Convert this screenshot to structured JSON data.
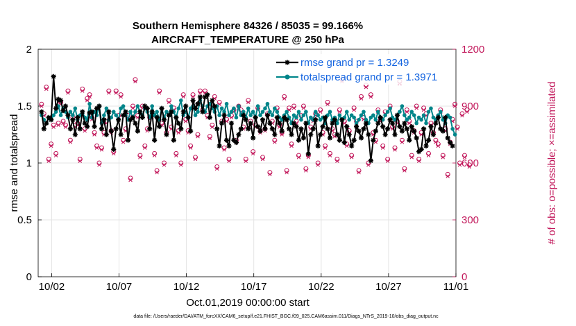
{
  "chart_data": {
    "type": "line",
    "title_line1": "Southern Hemisphere 84326 / 85035 = 99.166%",
    "title_line2": "AIRCRAFT_TEMPERATURE @ 250 hPa",
    "ylabel_left": "rmse and totalspread",
    "ylabel_right": "# of obs: o=possible; ×=assimilated",
    "xlabel": "Oct.01,2019 00:00:00 start",
    "footer": "data file: /Users/raeder/DAI/ATM_forcXX/CAM6_setup/f.e21.FHIST_BGC.f09_025.CAM6assim.011/Diags_NTrS_2019-10/obs_diag_output.nc",
    "ylim_left": [
      0,
      2
    ],
    "ylim_right": [
      0,
      1200
    ],
    "xlim_days": [
      0,
      31
    ],
    "left_ticks": [
      "0",
      "0.5",
      "1",
      "1.5",
      "2"
    ],
    "left_tick_values": [
      0,
      0.5,
      1,
      1.5,
      2
    ],
    "right_ticks": [
      "0",
      "300",
      "600",
      "900",
      "1200"
    ],
    "right_tick_values": [
      0,
      300,
      600,
      900,
      1200
    ],
    "x_ticks": [
      "10/02",
      "10/07",
      "10/12",
      "10/17",
      "10/22",
      "10/27",
      "11/01"
    ],
    "x_tick_days": [
      1,
      6,
      11,
      16,
      21,
      26,
      31
    ],
    "legend": [
      {
        "label": "rmse grand pr = 1.3249",
        "color": "#000000"
      },
      {
        "label": "totalspread grand pr = 1.3971",
        "color": "#00858a"
      }
    ],
    "colors": {
      "rmse": "#000000",
      "spread": "#00858a",
      "obs": "#c2185b"
    },
    "series": [
      {
        "name": "rmse",
        "values": [
          1.45,
          1.3,
          1.35,
          1.4,
          1.38,
          1.76,
          1.48,
          1.56,
          1.55,
          1.46,
          1.5,
          1.42,
          1.3,
          1.38,
          1.25,
          1.4,
          1.3,
          1.45,
          1.35,
          1.32,
          1.44,
          1.45,
          1.32,
          1.48,
          1.5,
          1.3,
          1.38,
          1.25,
          1.45,
          1.28,
          1.12,
          1.3,
          1.38,
          1.25,
          1.42,
          1.45,
          1.2,
          1.38,
          1.4,
          1.35,
          1.28,
          1.45,
          1.4,
          1.5,
          1.48,
          1.3,
          1.45,
          1.2,
          1.4,
          1.32,
          1.48,
          1.38,
          1.25,
          1.42,
          1.45,
          1.2,
          1.4,
          1.35,
          1.3,
          1.45,
          1.5,
          1.4,
          1.28,
          1.55,
          1.48,
          1.52,
          1.58,
          1.45,
          1.58,
          1.6,
          1.4,
          1.55,
          1.5,
          1.3,
          1.15,
          1.35,
          1.42,
          1.2,
          1.15,
          1.35,
          1.2,
          1.18,
          1.25,
          1.3,
          1.42,
          1.38,
          1.3,
          1.35,
          1.22,
          1.4,
          1.32,
          1.28,
          1.38,
          1.3,
          1.42,
          1.35,
          1.3,
          1.25,
          1.4,
          1.35,
          1.28,
          1.4,
          1.38,
          1.3,
          1.25,
          1.35,
          1.32,
          1.2,
          1.3,
          1.22,
          1.35,
          1.08,
          1.25,
          1.3,
          1.38,
          1.15,
          1.25,
          1.32,
          1.4,
          1.3,
          1.22,
          1.35,
          1.38,
          1.25,
          1.2,
          1.38,
          1.18,
          1.32,
          1.25,
          1.15,
          1.2,
          1.32,
          1.28,
          1.22,
          1.3,
          1.35,
          1.25,
          1.02,
          1.2,
          1.28,
          1.35,
          1.4,
          1.32,
          1.25,
          1.3,
          1.38,
          1.35,
          1.25,
          1.42,
          1.32,
          1.28,
          1.35,
          1.3,
          1.2,
          1.32,
          1.28,
          1.22,
          1.1,
          1.12,
          1.3,
          1.15,
          1.2,
          1.32,
          1.25,
          1.35,
          1.4,
          1.3,
          1.28,
          1.4,
          1.22,
          1.18,
          1.15
        ]
      },
      {
        "name": "totalspread",
        "values": [
          1.42,
          1.38,
          1.35,
          1.4,
          1.38,
          1.42,
          1.45,
          1.5,
          1.42,
          1.48,
          1.45,
          1.4,
          1.45,
          1.42,
          1.48,
          1.38,
          1.42,
          1.45,
          1.4,
          1.38,
          1.52,
          1.4,
          1.45,
          1.42,
          1.5,
          1.35,
          1.42,
          1.48,
          1.38,
          1.4,
          1.45,
          1.42,
          1.38,
          1.48,
          1.5,
          1.42,
          1.38,
          1.45,
          1.4,
          1.45,
          1.5,
          1.45,
          1.42,
          1.48,
          1.45,
          1.4,
          1.5,
          1.42,
          1.45,
          1.38,
          1.48,
          1.4,
          1.45,
          1.42,
          1.5,
          1.45,
          1.4,
          1.48,
          1.55,
          1.42,
          1.45,
          1.4,
          1.48,
          1.5,
          1.42,
          1.45,
          1.55,
          1.5,
          1.45,
          1.5,
          1.52,
          1.48,
          1.45,
          1.5,
          1.42,
          1.48,
          1.45,
          1.52,
          1.42,
          1.45,
          1.48,
          1.4,
          1.5,
          1.42,
          1.45,
          1.4,
          1.48,
          1.42,
          1.45,
          1.4,
          1.5,
          1.42,
          1.45,
          1.48,
          1.52,
          1.45,
          1.42,
          1.48,
          1.45,
          1.4,
          1.38,
          1.42,
          1.45,
          1.4,
          1.35,
          1.42,
          1.4,
          1.45,
          1.38,
          1.42,
          1.45,
          1.35,
          1.4,
          1.38,
          1.45,
          1.42,
          1.38,
          1.4,
          1.35,
          1.42,
          1.45,
          1.38,
          1.4,
          1.35,
          1.42,
          1.38,
          1.4,
          1.45,
          1.38,
          1.42,
          1.4,
          1.35,
          1.38,
          1.42,
          1.45,
          1.38,
          1.35,
          1.4,
          1.42,
          1.38,
          1.45,
          1.4,
          1.38,
          1.42,
          1.45,
          1.48,
          1.4,
          1.38,
          1.42,
          1.45,
          1.5,
          1.42,
          1.38,
          1.4,
          1.45,
          1.42,
          1.35,
          1.4,
          1.38,
          1.42,
          1.35,
          1.45,
          1.48,
          1.4,
          1.38,
          1.42,
          1.45,
          1.38,
          1.35,
          1.42,
          1.4,
          1.3,
          1.25
        ]
      },
      {
        "name": "obs_possible",
        "values": [
          910,
          860,
          1000,
          620,
          700,
          800,
          650,
          810,
          920,
          820,
          800,
          980,
          720,
          840,
          800,
          810,
          620,
          990,
          780,
          940,
          960,
          840,
          760,
          690,
          600,
          680,
          760,
          820,
          980,
          770,
          660,
          980,
          850,
          960,
          720,
          780,
          850,
          520,
          900,
          1040,
          850,
          640,
          900,
          690,
          780,
          840,
          850,
          650,
          560,
          980,
          810,
          600,
          760,
          930,
          790,
          890,
          650,
          770,
          600,
          960,
          830,
          770,
          690,
          960,
          630,
          750,
          980,
          880,
          980,
          850,
          740,
          800,
          950,
          580,
          920,
          820,
          680,
          830,
          620,
          850,
          880,
          720,
          900,
          880,
          790,
          620,
          930,
          820,
          660,
          800,
          890,
          770,
          630,
          780,
          860,
          550,
          820,
          720,
          890,
          800,
          760,
          950,
          560,
          890,
          700,
          900,
          820,
          640,
          850,
          900,
          570,
          640,
          790,
          830,
          860,
          600,
          880,
          760,
          690,
          920,
          650,
          780,
          750,
          620,
          880,
          1040,
          820,
          700,
          770,
          640,
          890,
          820,
          560,
          950,
          840,
          1010,
          600,
          960,
          760,
          720,
          880,
          830,
          690,
          870,
          620,
          900,
          790,
          680,
          820,
          1030,
          720,
          570,
          880,
          820,
          640,
          770,
          900,
          620,
          760,
          890,
          860,
          650,
          810,
          760,
          720,
          700,
          880,
          640,
          780,
          540,
          710,
          830,
          910,
          790,
          600,
          860,
          640,
          880,
          590
        ]
      },
      {
        "name": "obs_assimilated",
        "values": [
          900,
          850,
          990,
          610,
          690,
          790,
          640,
          800,
          910,
          810,
          790,
          970,
          710,
          830,
          790,
          800,
          610,
          980,
          770,
          930,
          950,
          830,
          750,
          680,
          590,
          670,
          750,
          810,
          970,
          760,
          650,
          970,
          840,
          950,
          710,
          770,
          840,
          510,
          890,
          1030,
          840,
          630,
          890,
          680,
          770,
          830,
          840,
          640,
          550,
          970,
          800,
          590,
          750,
          920,
          780,
          880,
          640,
          760,
          590,
          950,
          820,
          760,
          680,
          950,
          620,
          740,
          970,
          870,
          970,
          840,
          730,
          790,
          940,
          570,
          910,
          810,
          670,
          820,
          610,
          840,
          870,
          710,
          890,
          870,
          780,
          610,
          920,
          810,
          650,
          790,
          880,
          760,
          620,
          770,
          850,
          540,
          810,
          710,
          880,
          790,
          750,
          940,
          550,
          880,
          690,
          890,
          810,
          630,
          840,
          890,
          560,
          630,
          780,
          820,
          850,
          590,
          870,
          750,
          680,
          910,
          640,
          770,
          740,
          610,
          870,
          1030,
          810,
          690,
          760,
          630,
          880,
          810,
          550,
          940,
          830,
          1000,
          590,
          950,
          750,
          710,
          870,
          820,
          680,
          860,
          610,
          890,
          780,
          670,
          810,
          1020,
          710,
          560,
          870,
          810,
          630,
          760,
          890,
          610,
          750,
          880,
          850,
          640,
          800,
          750,
          710,
          690,
          870,
          630,
          770,
          530,
          700,
          820,
          900,
          780,
          590,
          850,
          630,
          870,
          580
        ]
      }
    ]
  }
}
